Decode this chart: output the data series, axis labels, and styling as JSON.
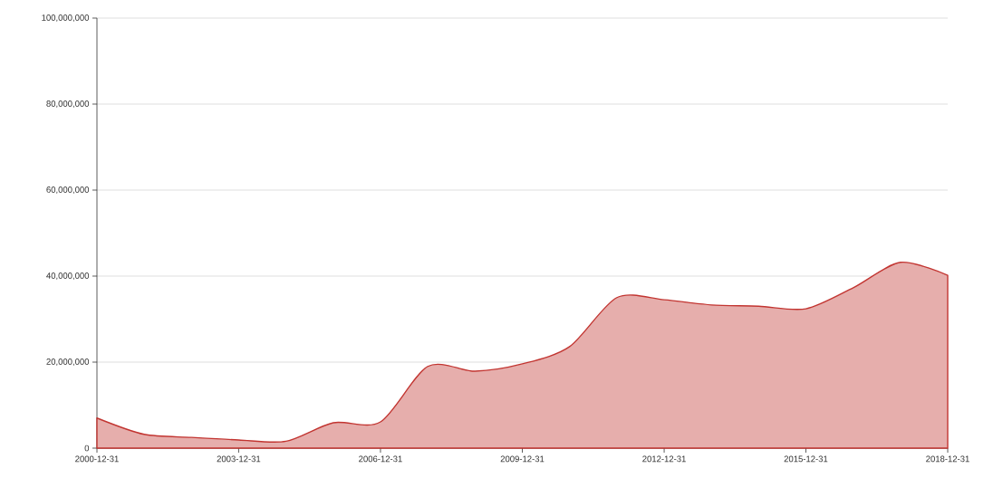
{
  "chart_data": {
    "type": "area",
    "x": [
      "2000-12-31",
      "2001-12-31",
      "2002-12-31",
      "2003-12-31",
      "2004-12-31",
      "2005-12-31",
      "2006-12-31",
      "2007-12-31",
      "2008-12-31",
      "2009-12-31",
      "2010-12-31",
      "2011-12-31",
      "2012-12-31",
      "2013-12-31",
      "2014-12-31",
      "2015-12-31",
      "2016-12-31",
      "2017-12-31",
      "2018-12-31"
    ],
    "values": [
      7000000,
      3200000,
      2500000,
      1900000,
      1600000,
      5900000,
      6100000,
      19000000,
      17900000,
      19600000,
      23600000,
      35000000,
      34500000,
      33300000,
      33000000,
      32400000,
      37300000,
      43200000,
      40200000
    ],
    "color": "#c23531",
    "xlim": [
      "2000-12-31",
      "2018-12-31"
    ],
    "xticks": [
      "2000-12-31",
      "2003-12-31",
      "2006-12-31",
      "2009-12-31",
      "2012-12-31",
      "2015-12-31",
      "2018-12-31"
    ],
    "ylim": [
      0,
      100000000
    ],
    "yticks": [
      {
        "value": 0,
        "label": "0"
      },
      {
        "value": 20000000,
        "label": "20,000,000"
      },
      {
        "value": 40000000,
        "label": "40,000,000"
      },
      {
        "value": 60000000,
        "label": "60,000,000"
      },
      {
        "value": 80000000,
        "label": "80,000,000"
      },
      {
        "value": 100000000,
        "label": "100,000,000"
      }
    ],
    "grid": "y"
  }
}
